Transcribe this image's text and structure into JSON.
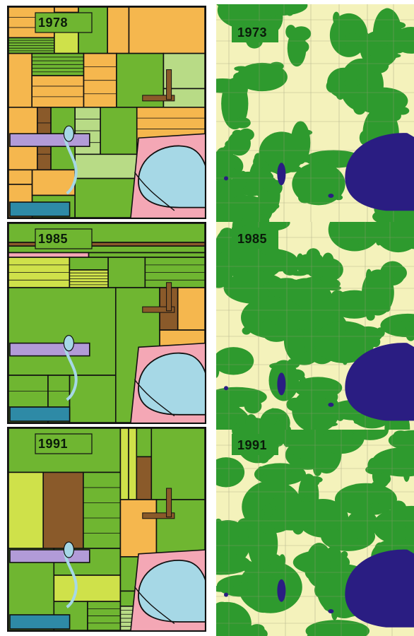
{
  "maps": {
    "landuse_panels": [
      {
        "year": "1978"
      },
      {
        "year": "1985"
      },
      {
        "year": "1991"
      }
    ],
    "forest_panels": [
      {
        "year": "1973"
      },
      {
        "year": "1985"
      },
      {
        "year": "1991"
      }
    ]
  },
  "colors": {
    "field_orange": "#f5b74e",
    "field_green": "#6fb631",
    "field_lightgreen": "#b8db86",
    "field_yellowgreen": "#cfe14a",
    "field_pink": "#f4a7b5",
    "field_lavender": "#b29bd8",
    "field_brown": "#8a5a2a",
    "water_light": "#a6d8e6",
    "water_teal": "#2e8aa6",
    "forest_green": "#2e9a2e",
    "open_land": "#f4f2bb",
    "water_dark": "#2a1d82",
    "outline": "#111111"
  }
}
